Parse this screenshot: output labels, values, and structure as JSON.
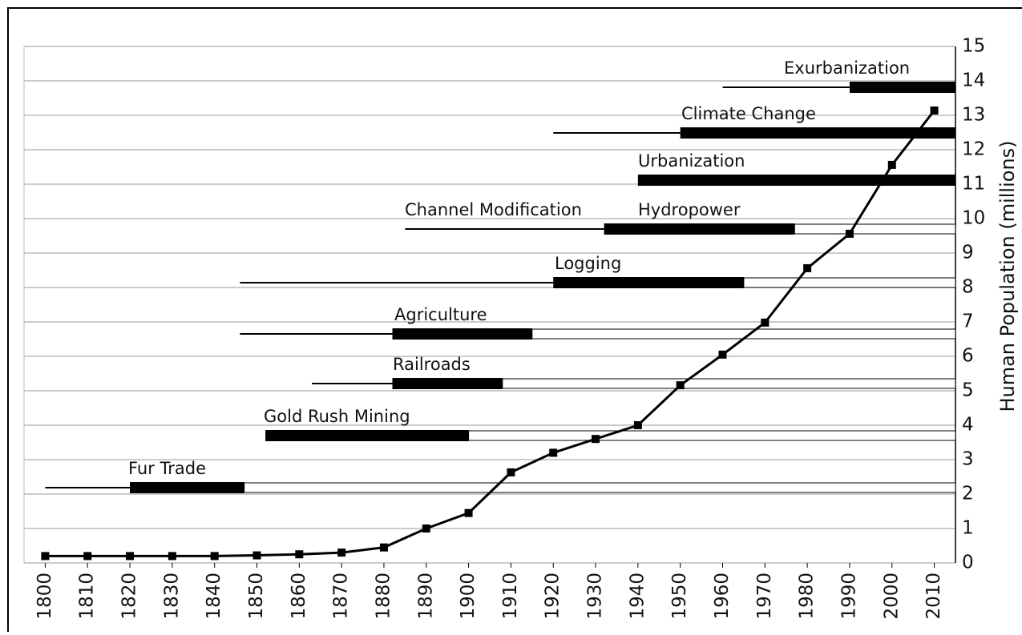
{
  "chart_data": {
    "type": "line",
    "y_label": "Human Population (millions)",
    "x": [
      1800,
      1810,
      1820,
      1830,
      1840,
      1850,
      1860,
      1870,
      1880,
      1890,
      1900,
      1910,
      1920,
      1930,
      1940,
      1950,
      1960,
      1970,
      1980,
      1990,
      2000,
      2010
    ],
    "series": [
      {
        "color": "#000000",
        "values": [
          0.2,
          0.2,
          0.2,
          0.2,
          0.2,
          0.22,
          0.25,
          0.3,
          0.45,
          1.0,
          1.45,
          2.63,
          3.2,
          3.6,
          4.0,
          5.16,
          6.05,
          6.98,
          8.56,
          9.56,
          11.56,
          13.14
        ]
      }
    ],
    "xlim": [
      1795,
      2015
    ],
    "xticks": [
      1800,
      1810,
      1820,
      1830,
      1840,
      1850,
      1860,
      1870,
      1880,
      1890,
      1900,
      1910,
      1920,
      1930,
      1940,
      1950,
      1960,
      1970,
      1980,
      1990,
      2000,
      2010
    ],
    "ylim": [
      0,
      15
    ],
    "yticks": [
      0,
      1,
      2,
      3,
      4,
      5,
      6,
      7,
      8,
      9,
      10,
      11,
      12,
      13,
      14,
      15
    ],
    "grid": true,
    "timelines": [
      {
        "labels": [
          "Fur Trade"
        ],
        "line_start": 1800,
        "bar_start": 1820,
        "bar_end": 1847,
        "outlined": true
      },
      {
        "labels": [
          "Gold Rush Mining"
        ],
        "bar_start": 1852,
        "bar_end": 1900,
        "outlined": true
      },
      {
        "labels": [
          "Railroads"
        ],
        "line_start": 1863,
        "bar_start": 1882,
        "bar_end": 1908,
        "outlined": true
      },
      {
        "labels": [
          "Agriculture"
        ],
        "line_start": 1846,
        "bar_start": 1882,
        "bar_end": 1915,
        "outlined": true
      },
      {
        "labels": [
          "Logging"
        ],
        "line_start": 1846,
        "bar_start": 1920,
        "bar_end": 1965,
        "outlined": true
      },
      {
        "labels": [
          "Channel Modification",
          "Hydropower"
        ],
        "line_start": 1885,
        "bar_start": 1932,
        "bar_end": 1977,
        "outlined": true
      },
      {
        "labels": [
          "Urbanization"
        ],
        "bar_start": 1940,
        "outlined": false
      },
      {
        "labels": [
          "Climate Change"
        ],
        "line_start": 1920,
        "bar_start": 1950,
        "outlined": false
      },
      {
        "labels": [
          "Exurbanization"
        ],
        "line_start": 1960,
        "bar_start": 1990,
        "outlined": false
      }
    ]
  }
}
